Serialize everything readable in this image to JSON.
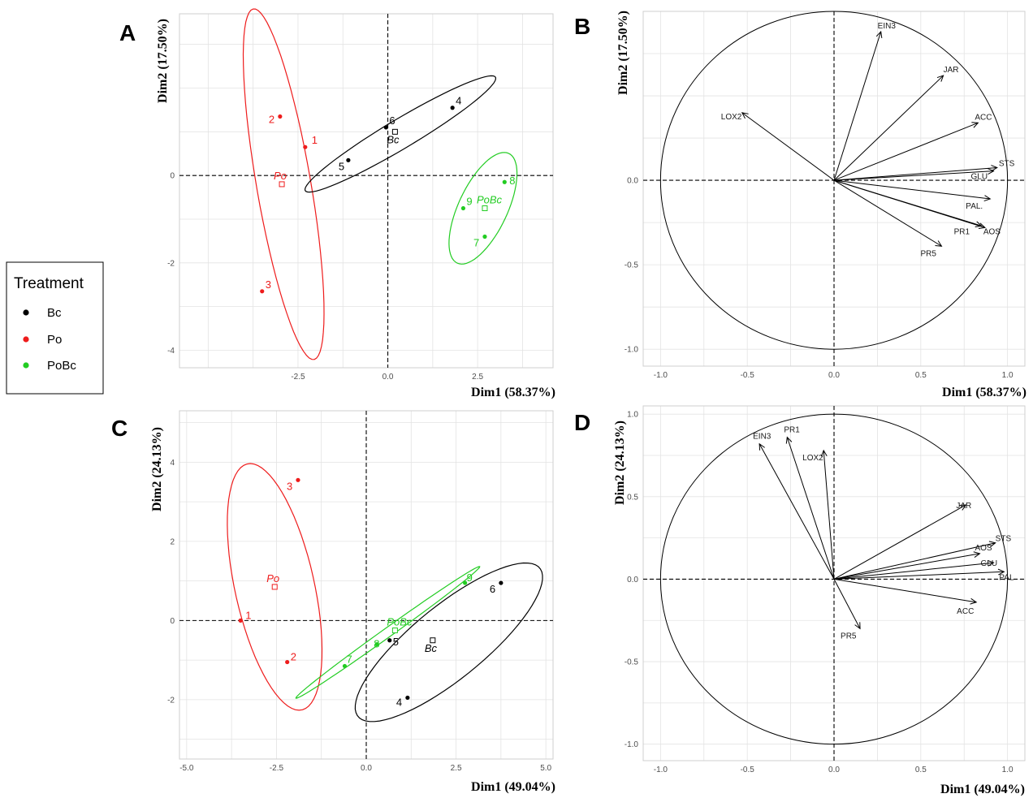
{
  "colors": {
    "Bc": "#000000",
    "Po": "#ee1c1c",
    "PoBc": "#22cc22",
    "grid": "#e3e3e3"
  },
  "legend": {
    "title": "Treatment",
    "items": [
      {
        "label": "Bc",
        "color": "#000000"
      },
      {
        "label": "Po",
        "color": "#ee1c1c"
      },
      {
        "label": "PoBc",
        "color": "#22cc22"
      }
    ]
  },
  "chart_data": [
    {
      "panel": "A",
      "type": "scatter",
      "xlabel": "Dim1 (58.37%)",
      "ylabel": "Dim2 (17.50%)",
      "xticks": [
        "-2.5",
        "0.0",
        "2.5"
      ],
      "yticks": [
        "0",
        "-2",
        "-4"
      ],
      "xlim": [
        -5.8,
        4.6
      ],
      "ylim": [
        -4.4,
        3.7
      ],
      "points": [
        {
          "label": "1",
          "group": "Po",
          "x": -2.3,
          "y": 0.65
        },
        {
          "label": "2",
          "group": "Po",
          "x": -3.0,
          "y": 1.35
        },
        {
          "label": "3",
          "group": "Po",
          "x": -3.5,
          "y": -2.65
        },
        {
          "label": "4",
          "group": "Bc",
          "x": 1.8,
          "y": 1.55
        },
        {
          "label": "5",
          "group": "Bc",
          "x": -1.1,
          "y": 0.35
        },
        {
          "label": "6",
          "group": "Bc",
          "x": -0.05,
          "y": 1.1
        },
        {
          "label": "7",
          "group": "PoBc",
          "x": 2.7,
          "y": -1.4
        },
        {
          "label": "8",
          "group": "PoBc",
          "x": 3.25,
          "y": -0.15
        },
        {
          "label": "9",
          "group": "PoBc",
          "x": 2.1,
          "y": -0.75
        }
      ],
      "centroids": [
        {
          "label": "Po",
          "group": "Po",
          "x": -2.95,
          "y": -0.2
        },
        {
          "label": "Bc",
          "group": "Bc",
          "x": 0.2,
          "y": 1.0
        },
        {
          "label": "PoBc",
          "group": "PoBc",
          "x": 2.7,
          "y": -0.75
        }
      ]
    },
    {
      "panel": "B",
      "type": "scatter",
      "xlabel": "Dim1 (58.37%)",
      "ylabel": "Dim2 (17.50%)",
      "xticks": [
        "-1.0",
        "-0.5",
        "0.0",
        "0.5",
        "1.0"
      ],
      "yticks": [
        "0.0",
        "-0.5",
        "-1.0"
      ],
      "xlim": [
        -1.1,
        1.1
      ],
      "ylim": [
        -1.1,
        1.0
      ],
      "vectors": [
        {
          "label": "EIN3",
          "x": 0.27,
          "y": 0.88
        },
        {
          "label": "JAR",
          "x": 0.63,
          "y": 0.62
        },
        {
          "label": "ACC",
          "x": 0.83,
          "y": 0.34
        },
        {
          "label": "LOX2",
          "x": -0.53,
          "y": 0.4
        },
        {
          "label": "STS",
          "x": 0.94,
          "y": 0.075
        },
        {
          "label": "GLU",
          "x": 0.92,
          "y": 0.055
        },
        {
          "label": "PAL.",
          "x": 0.9,
          "y": -0.11
        },
        {
          "label": "PR1",
          "x": 0.85,
          "y": -0.27
        },
        {
          "label": "AOS",
          "x": 0.87,
          "y": -0.28
        },
        {
          "label": "PR5",
          "x": 0.62,
          "y": -0.39
        }
      ]
    },
    {
      "panel": "C",
      "type": "scatter",
      "xlabel": "Dim1 (49.04%)",
      "ylabel": "Dim2 (24.13%)",
      "xticks": [
        "-5.0",
        "-2.5",
        "0.0",
        "2.5",
        "5.0"
      ],
      "yticks": [
        "4",
        "2",
        "0",
        "-2"
      ],
      "xlim": [
        -5.2,
        5.2
      ],
      "ylim": [
        -3.5,
        5.3
      ],
      "points": [
        {
          "label": "1",
          "group": "Po",
          "x": -3.5,
          "y": 0.0
        },
        {
          "label": "2",
          "group": "Po",
          "x": -2.2,
          "y": -1.05
        },
        {
          "label": "3",
          "group": "Po",
          "x": -1.9,
          "y": 3.55
        },
        {
          "label": "4",
          "group": "Bc",
          "x": 1.15,
          "y": -1.95
        },
        {
          "label": "5",
          "group": "Bc",
          "x": 0.65,
          "y": -0.5
        },
        {
          "label": "6",
          "group": "Bc",
          "x": 3.75,
          "y": 0.95
        },
        {
          "label": "7",
          "group": "PoBc",
          "x": -0.6,
          "y": -1.15
        },
        {
          "label": "8",
          "group": "PoBc",
          "x": 0.3,
          "y": -0.6
        },
        {
          "label": "9",
          "group": "PoBc",
          "x": 2.75,
          "y": 0.95
        }
      ],
      "centroids": [
        {
          "label": "Po",
          "group": "Po",
          "x": -2.55,
          "y": 0.85
        },
        {
          "label": "Bc",
          "group": "Bc",
          "x": 1.85,
          "y": -0.5
        },
        {
          "label": "PoBc",
          "group": "PoBc",
          "x": 0.8,
          "y": -0.25
        }
      ]
    },
    {
      "panel": "D",
      "type": "scatter",
      "xlabel": "Dim1 (49.04%)",
      "ylabel": "Dim2 (24.13%)",
      "xticks": [
        "-1.0",
        "-0.5",
        "0.0",
        "0.5",
        "1.0"
      ],
      "yticks": [
        "1.0",
        "0.5",
        "0.0",
        "-0.5",
        "-1.0"
      ],
      "xlim": [
        -1.1,
        1.1
      ],
      "ylim": [
        -1.1,
        1.05
      ],
      "vectors": [
        {
          "label": "EIN3",
          "x": -0.43,
          "y": 0.82
        },
        {
          "label": "PR1",
          "x": -0.27,
          "y": 0.86
        },
        {
          "label": "LOX2",
          "x": -0.06,
          "y": 0.78
        },
        {
          "label": "JAR",
          "x": 0.76,
          "y": 0.45
        },
        {
          "label": "STS",
          "x": 0.93,
          "y": 0.22
        },
        {
          "label": "AOS",
          "x": 0.84,
          "y": 0.155
        },
        {
          "label": "GLU",
          "x": 0.92,
          "y": 0.1
        },
        {
          "label": "PAL",
          "x": 0.98,
          "y": 0.045
        },
        {
          "label": "ACC",
          "x": 0.82,
          "y": -0.14
        },
        {
          "label": "PR5",
          "x": 0.15,
          "y": -0.3
        }
      ]
    }
  ]
}
